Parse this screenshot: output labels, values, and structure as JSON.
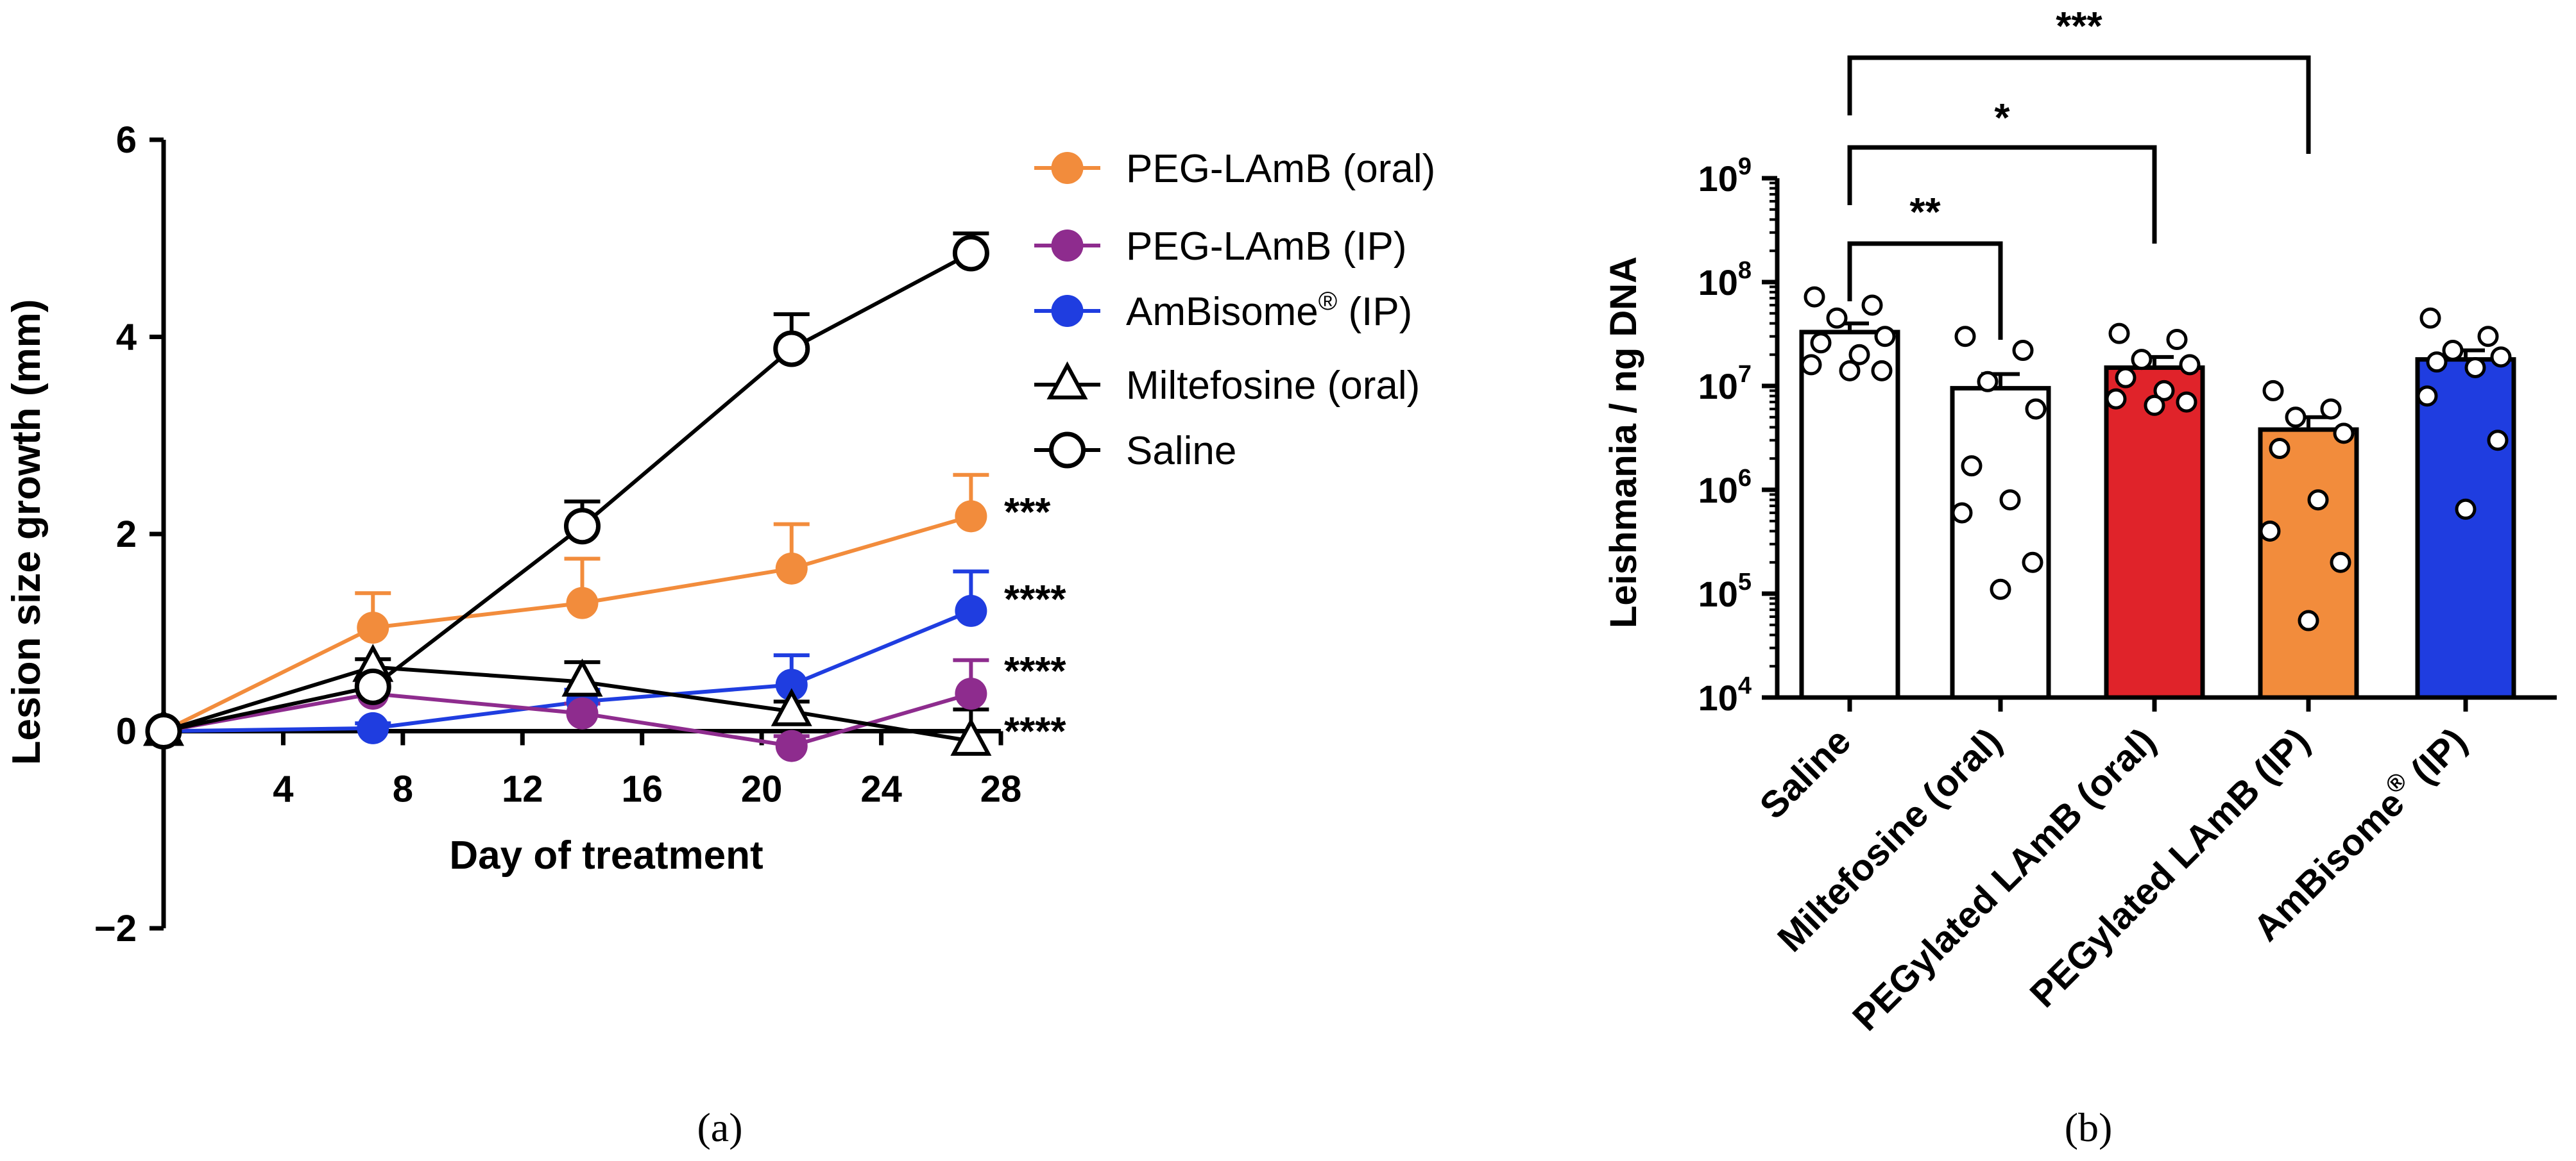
{
  "chart_data": [
    {
      "panel": "a",
      "type": "line",
      "panel_label": "(a)",
      "xlabel": "Day of treatment",
      "ylabel": "Lesion size growth  (mm)",
      "xlim": [
        0,
        28
      ],
      "ylim": [
        -2,
        6
      ],
      "xticks": [
        4,
        8,
        12,
        16,
        20,
        24,
        28
      ],
      "xtick_labels": [
        "4",
        "8",
        "12",
        "16",
        "20",
        "24",
        "28"
      ],
      "yticks": [
        -2,
        0,
        2,
        4,
        6
      ],
      "ytick_labels": [
        "−2",
        "0",
        "2",
        "4",
        "6"
      ],
      "legend_position": "top-right",
      "series": [
        {
          "name": "PEG-LAmB (oral)",
          "legend_label": "PEG-LAmB (oral)",
          "color": "#f28c3c",
          "marker": "filled-circle",
          "x": [
            0,
            7,
            14,
            21,
            27
          ],
          "values": [
            0,
            1.05,
            1.3,
            1.65,
            2.18
          ],
          "error": [
            0,
            0.35,
            0.45,
            0.45,
            0.42
          ],
          "significance": "***"
        },
        {
          "name": "PEG-LAmB (IP)",
          "legend_label": "PEG-LAmB (IP)",
          "color": "#8e2c8e",
          "marker": "filled-circle",
          "x": [
            0,
            7,
            14,
            21,
            27
          ],
          "values": [
            0,
            0.38,
            0.18,
            -0.15,
            0.38
          ],
          "error": [
            0,
            0.1,
            0.1,
            0.1,
            0.34
          ],
          "significance": "****"
        },
        {
          "name": "AmBisome® (IP)",
          "legend_label": "AmBisome",
          "legend_sup": "®",
          "legend_suffix": " (IP)",
          "color": "#1f3de0",
          "marker": "filled-circle",
          "x": [
            0,
            7,
            14,
            21,
            27
          ],
          "values": [
            0,
            0.03,
            0.3,
            0.47,
            1.22
          ],
          "error": [
            0,
            0.05,
            0.12,
            0.3,
            0.4
          ],
          "significance": "****"
        },
        {
          "name": "Miltefosine (oral)",
          "legend_label": "Miltefosine (oral)",
          "color": "#000000",
          "marker": "open-triangle",
          "x": [
            0,
            7,
            14,
            21,
            27
          ],
          "values": [
            0,
            0.65,
            0.5,
            0.2,
            -0.1
          ],
          "error": [
            0,
            0.08,
            0.2,
            0.1,
            0.32
          ],
          "significance": "****"
        },
        {
          "name": "Saline",
          "legend_label": "Saline",
          "color": "#000000",
          "marker": "open-circle",
          "x": [
            0,
            7,
            14,
            21,
            27
          ],
          "values": [
            0,
            0.45,
            2.08,
            3.88,
            4.85
          ],
          "error": [
            0,
            0.08,
            0.25,
            0.35,
            0.2
          ],
          "significance": ""
        }
      ]
    },
    {
      "panel": "b",
      "type": "bar",
      "panel_label": "(b)",
      "ylabel": "Leishmania / ng DNA",
      "yscale": "log",
      "ylim": [
        10000,
        1000000000
      ],
      "ytick_exponents": [
        "4",
        "5",
        "6",
        "7",
        "8",
        "9"
      ],
      "ytick_base": "10",
      "categories": [
        "Saline",
        "Miltefosine (oral)",
        "PEGylated LAmB (oral)",
        "PEGylated LAmB (IP)",
        "AmBisome® (IP)"
      ],
      "category_labels": [
        {
          "text": "Saline",
          "sup": "",
          "suffix": ""
        },
        {
          "text": "Miltefosine (oral)",
          "sup": "",
          "suffix": ""
        },
        {
          "text": "PEGylated LAmB (oral)",
          "sup": "",
          "suffix": ""
        },
        {
          "text": "PEGylated LAmB (IP)",
          "sup": "",
          "suffix": ""
        },
        {
          "text": "AmBisome",
          "sup": "®",
          "suffix": " (IP)"
        }
      ],
      "colors": [
        "#ffffff",
        "#ffffff",
        "#e0232a",
        "#f28c3c",
        "#1f3de0"
      ],
      "values": [
        33000000,
        9500000,
        15000000,
        3800000,
        18000000
      ],
      "sem_upper": [
        40000000,
        13000000,
        19000000,
        5000000,
        22000000
      ],
      "points": [
        [
          72000000,
          60000000,
          45000000,
          30000000,
          26000000,
          20000000,
          16000000,
          14000000,
          14000000
        ],
        [
          30000000,
          22000000,
          11000000,
          6000000,
          1700000,
          800000,
          600000,
          200000,
          110000
        ],
        [
          32000000,
          28000000,
          18000000,
          16000000,
          12000000,
          9000000,
          7500000,
          7000000,
          6500000
        ],
        [
          9000000,
          6000000,
          5000000,
          3500000,
          2500000,
          800000,
          400000,
          200000,
          55000
        ],
        [
          45000000,
          30000000,
          22000000,
          19000000,
          17000000,
          15000000,
          8000000,
          3000000,
          650000
        ]
      ],
      "comparisons": [
        {
          "from": 0,
          "to": 1,
          "label": "**"
        },
        {
          "from": 0,
          "to": 2,
          "label": "*"
        },
        {
          "from": 0,
          "to": 3,
          "label": "***"
        }
      ]
    }
  ]
}
